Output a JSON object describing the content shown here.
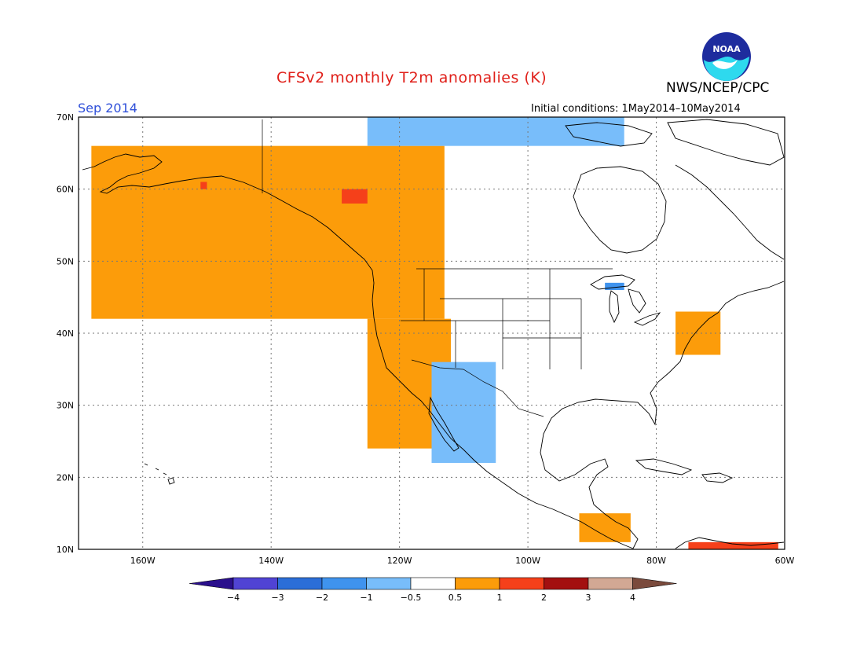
{
  "title": "CFSv2 monthly T2m anomalies (K)",
  "agency": "NWS/NCEP/CPC",
  "logo_text": "NOAA",
  "month": "Sep 2014",
  "initial_conditions": "Initial conditions: 1May2014–10May2014",
  "lat_labels": [
    "70N",
    "60N",
    "50N",
    "40N",
    "30N",
    "20N",
    "10N"
  ],
  "lon_labels": [
    "160W",
    "140W",
    "120W",
    "100W",
    "80W",
    "60W"
  ],
  "colorbar": {
    "labels": [
      "−4",
      "−3",
      "−2",
      "−1",
      "−0.5",
      "0.5",
      "1",
      "2",
      "3",
      "4"
    ],
    "colors": [
      "#2a0f8c",
      "#5043d4",
      "#2b6ed8",
      "#3f93ee",
      "#78bdfa",
      "#ffffff",
      "#fc9c0a",
      "#f5401a",
      "#a31010",
      "#d2a894",
      "#7a4a3c"
    ]
  },
  "chart_data": {
    "type": "heatmap",
    "variable": "T2m anomaly (K)",
    "lon_range": [
      -170,
      -60
    ],
    "lat_range": [
      10,
      70
    ],
    "regions": [
      {
        "area": "Alaska / Yukon / British Columbia",
        "lon": [
          -168,
          -113
        ],
        "lat": [
          42,
          66
        ],
        "anomaly": 0.75
      },
      {
        "area": "Northern British Columbia hotspot",
        "lon": [
          -129,
          -125
        ],
        "lat": [
          58,
          60
        ],
        "anomaly": 1.5
      },
      {
        "area": "Southwest Alaska hotspot",
        "lon": [
          -151,
          -150
        ],
        "lat": [
          60,
          61
        ],
        "anomaly": 1.5
      },
      {
        "area": "US West Coast / Baja",
        "lon": [
          -125,
          -112
        ],
        "lat": [
          24,
          42
        ],
        "anomaly": 0.75
      },
      {
        "area": "US Southwest / NW Mexico",
        "lon": [
          -115,
          -105
        ],
        "lat": [
          22,
          36
        ],
        "anomaly": -0.75
      },
      {
        "area": "Canadian Arctic coast",
        "lon": [
          -125,
          -85
        ],
        "lat": [
          66,
          70
        ],
        "anomaly": -0.75
      },
      {
        "area": "Upper Great Lakes",
        "lon": [
          -88,
          -85
        ],
        "lat": [
          46,
          47
        ],
        "anomaly": -1.5
      },
      {
        "area": "US Northeast coast",
        "lon": [
          -77,
          -70
        ],
        "lat": [
          37,
          43
        ],
        "anomaly": 0.75
      },
      {
        "area": "Central America",
        "lon": [
          -92,
          -84
        ],
        "lat": [
          11,
          15
        ],
        "anomaly": 0.75
      },
      {
        "area": "Northern South America",
        "lon": [
          -75,
          -61
        ],
        "lat": [
          10,
          11
        ],
        "anomaly": 1.5
      }
    ]
  }
}
